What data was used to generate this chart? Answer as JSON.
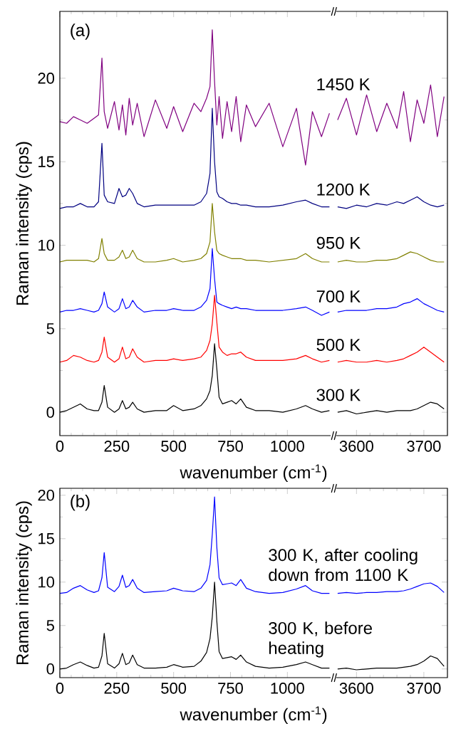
{
  "chart_data": [
    {
      "type": "line",
      "xlabel": "wavenumber (cm$^{-1}$)",
      "ylabel": "Raman intensity (cps)",
      "annotations": [
        "(a)"
      ],
      "x": [
        0,
        30,
        60,
        90,
        120,
        150,
        170,
        185,
        195,
        210,
        240,
        260,
        275,
        290,
        305,
        320,
        340,
        370,
        420,
        470,
        500,
        540,
        590,
        620,
        645,
        660,
        670,
        680,
        690,
        700,
        715,
        735,
        755,
        775,
        795,
        820,
        860,
        920,
        980,
        1040,
        1080,
        1110,
        1150,
        1185
      ],
      "xlim": [
        0,
        1190
      ],
      "xticks": [
        0,
        250,
        500,
        750,
        1000
      ],
      "ylim": [
        -1.4,
        24
      ],
      "yticks": [
        0,
        5,
        10,
        15,
        20
      ],
      "series": [
        {
          "name": "1450 K",
          "color": "#800080",
          "values": [
            17.4,
            17.3,
            17.7,
            17.5,
            17.3,
            17.6,
            17.8,
            21.2,
            18.0,
            17.0,
            18.6,
            16.9,
            18.4,
            16.6,
            18.8,
            17.2,
            18.5,
            16.5,
            18.7,
            17.0,
            18.3,
            16.8,
            18.5,
            18.0,
            18.8,
            19.5,
            22.9,
            19.8,
            17.2,
            18.9,
            16.4,
            18.6,
            16.8,
            18.9,
            16.2,
            18.4,
            17.1,
            18.5,
            15.9,
            18.2,
            14.8,
            18.0,
            16.5,
            17.9
          ]
        },
        {
          "name": "1200 K",
          "color": "#000080",
          "values": [
            12.2,
            12.3,
            12.3,
            12.5,
            12.3,
            12.3,
            12.6,
            16.1,
            13.0,
            12.6,
            12.5,
            13.4,
            12.9,
            13.0,
            13.4,
            13.1,
            12.5,
            12.3,
            12.4,
            12.4,
            12.4,
            12.4,
            12.4,
            12.6,
            13.1,
            14.3,
            18.2,
            15.0,
            13.2,
            12.9,
            12.8,
            12.6,
            12.5,
            12.5,
            12.4,
            12.4,
            12.3,
            12.3,
            12.4,
            12.6,
            12.7,
            12.5,
            12.3,
            12.3
          ]
        },
        {
          "name": "950 K",
          "color": "#808000",
          "values": [
            9.0,
            9.1,
            9.1,
            9.1,
            9.1,
            9.0,
            9.2,
            10.4,
            9.5,
            9.1,
            9.1,
            9.3,
            9.7,
            9.2,
            9.3,
            9.7,
            9.2,
            9.0,
            9.0,
            9.1,
            9.2,
            9.0,
            9.1,
            9.2,
            9.5,
            10.2,
            12.5,
            10.8,
            9.7,
            9.5,
            9.4,
            9.3,
            9.2,
            9.2,
            9.2,
            9.1,
            9.1,
            9.0,
            9.1,
            9.2,
            9.5,
            9.2,
            9.0,
            9.0
          ]
        },
        {
          "name": "700 K",
          "color": "#0000ff",
          "values": [
            6.0,
            6.1,
            6.1,
            6.2,
            6.1,
            6.0,
            6.1,
            6.5,
            7.2,
            6.3,
            6.0,
            6.2,
            6.8,
            6.2,
            6.3,
            6.7,
            6.3,
            6.0,
            6.1,
            6.1,
            6.2,
            6.1,
            6.1,
            6.3,
            6.7,
            7.4,
            9.8,
            8.0,
            6.6,
            6.5,
            6.4,
            6.3,
            6.2,
            6.3,
            6.2,
            6.2,
            6.1,
            6.1,
            6.1,
            6.2,
            6.3,
            6.1,
            5.8,
            6.0
          ]
        },
        {
          "name": "500 K",
          "color": "#ff0000",
          "values": [
            3.0,
            3.1,
            3.4,
            3.3,
            3.1,
            3.0,
            3.1,
            3.6,
            4.5,
            3.3,
            3.0,
            3.2,
            3.9,
            3.2,
            3.3,
            3.8,
            3.3,
            3.0,
            3.1,
            3.1,
            3.2,
            3.1,
            3.2,
            3.3,
            3.7,
            4.3,
            5.3,
            7.0,
            5.4,
            3.9,
            3.6,
            3.4,
            3.5,
            3.5,
            3.6,
            3.3,
            3.1,
            3.1,
            3.1,
            3.2,
            3.4,
            3.2,
            3.0,
            3.1
          ]
        },
        {
          "name": "300 K",
          "color": "#000000",
          "values": [
            0.0,
            0.1,
            0.3,
            0.5,
            0.2,
            0.1,
            0.1,
            0.6,
            1.6,
            0.3,
            0.0,
            0.2,
            0.7,
            0.2,
            0.3,
            0.6,
            0.2,
            0.0,
            0.1,
            0.1,
            0.4,
            0.1,
            0.2,
            0.4,
            0.8,
            1.3,
            2.2,
            4.1,
            2.6,
            0.9,
            0.5,
            0.6,
            0.7,
            0.5,
            0.8,
            0.3,
            0.1,
            0.1,
            0.0,
            0.2,
            0.4,
            0.2,
            0.0,
            0.1
          ]
        }
      ]
    },
    {
      "type": "line",
      "tick_labels": "x",
      "x": [
        3572,
        3585,
        3600,
        3615,
        3630,
        3645,
        3660,
        3670,
        3680,
        3690,
        3700,
        3710,
        3720,
        3730
      ],
      "xlim": [
        3570,
        3735
      ],
      "xticks": [
        3600,
        3700
      ],
      "ylim": [
        -1.4,
        24
      ],
      "yticks": [
        0,
        5,
        10,
        15,
        20
      ],
      "series": [
        {
          "color": "#800080",
          "values": [
            17.5,
            18.8,
            16.6,
            19.0,
            16.8,
            18.5,
            17.0,
            19.2,
            16.2,
            18.7,
            17.3,
            19.6,
            16.5,
            18.9
          ]
        },
        {
          "color": "#000080",
          "values": [
            12.3,
            12.2,
            12.4,
            12.3,
            12.5,
            12.4,
            12.6,
            12.5,
            12.7,
            12.9,
            12.6,
            12.4,
            12.3,
            12.4
          ]
        },
        {
          "color": "#808000",
          "values": [
            9.0,
            9.1,
            9.0,
            9.0,
            9.1,
            9.1,
            9.2,
            9.4,
            9.6,
            9.5,
            9.3,
            9.1,
            9.0,
            9.0
          ]
        },
        {
          "color": "#0000ff",
          "values": [
            6.0,
            6.1,
            6.1,
            6.1,
            6.2,
            6.2,
            6.3,
            6.5,
            6.6,
            6.8,
            6.5,
            6.3,
            6.1,
            6.0
          ]
        },
        {
          "color": "#ff0000",
          "values": [
            3.0,
            3.1,
            3.0,
            3.0,
            3.1,
            3.0,
            3.1,
            3.2,
            3.4,
            3.6,
            3.9,
            3.6,
            3.3,
            3.0
          ]
        },
        {
          "color": "#000000",
          "values": [
            0.0,
            0.1,
            -0.1,
            0.0,
            0.1,
            0.0,
            0.1,
            0.1,
            0.1,
            0.2,
            0.4,
            0.6,
            0.5,
            0.2
          ]
        }
      ]
    },
    {
      "type": "line",
      "xlabel": "wavenumber (cm$^{-1}$)",
      "ylabel": "Raman intensity (cps)",
      "annotations": [
        "(b)"
      ],
      "x": [
        0,
        30,
        60,
        90,
        120,
        150,
        170,
        185,
        195,
        210,
        240,
        260,
        275,
        290,
        305,
        320,
        340,
        370,
        420,
        470,
        500,
        540,
        590,
        620,
        645,
        660,
        670,
        680,
        690,
        700,
        715,
        735,
        755,
        775,
        795,
        820,
        860,
        920,
        980,
        1040,
        1080,
        1110,
        1150,
        1185
      ],
      "xlim": [
        0,
        1190
      ],
      "xticks": [
        0,
        250,
        500,
        750,
        1000
      ],
      "ylim": [
        -1,
        20.8
      ],
      "yticks": [
        0,
        5,
        10,
        15,
        20
      ],
      "series": [
        {
          "name": "300 K, after cooling down from 1100 K",
          "color": "#0000ff",
          "values": [
            8.7,
            8.8,
            9.3,
            9.6,
            9.1,
            8.8,
            9.0,
            10.5,
            13.4,
            9.4,
            8.9,
            9.5,
            10.8,
            9.4,
            9.6,
            10.3,
            9.3,
            8.8,
            8.9,
            9.0,
            9.3,
            9.0,
            8.9,
            9.3,
            10.2,
            12.0,
            15.5,
            19.8,
            14.0,
            10.5,
            9.7,
            9.8,
            9.9,
            9.6,
            10.3,
            9.3,
            8.9,
            8.7,
            8.8,
            9.2,
            9.6,
            9.0,
            8.7,
            8.7
          ]
        },
        {
          "name": "300 K, before heating",
          "color": "#000000",
          "values": [
            0.0,
            0.1,
            0.5,
            0.8,
            0.4,
            0.1,
            0.2,
            1.5,
            4.1,
            0.6,
            0.1,
            0.6,
            1.8,
            0.5,
            0.7,
            1.6,
            0.5,
            0.1,
            0.1,
            0.2,
            0.5,
            0.2,
            0.3,
            0.9,
            1.9,
            3.5,
            6.0,
            10.0,
            5.5,
            2.0,
            1.2,
            1.3,
            1.4,
            1.1,
            1.6,
            0.8,
            0.3,
            0.1,
            0.2,
            0.5,
            0.8,
            0.5,
            0.1,
            0.1
          ]
        }
      ]
    },
    {
      "type": "line",
      "tick_labels": "x",
      "x": [
        3572,
        3585,
        3600,
        3615,
        3630,
        3645,
        3660,
        3670,
        3680,
        3690,
        3700,
        3710,
        3720,
        3730
      ],
      "xlim": [
        3570,
        3735
      ],
      "xticks": [
        3600,
        3700
      ],
      "ylim": [
        -1,
        20.8
      ],
      "yticks": [
        0,
        5,
        10,
        15,
        20
      ],
      "series": [
        {
          "color": "#0000ff",
          "values": [
            8.7,
            8.8,
            8.7,
            8.8,
            8.8,
            8.9,
            8.9,
            9.0,
            9.2,
            9.5,
            9.8,
            9.9,
            9.5,
            8.8
          ]
        },
        {
          "color": "#000000",
          "values": [
            0.0,
            0.1,
            -0.1,
            0.0,
            0.1,
            0.1,
            0.1,
            0.2,
            0.3,
            0.5,
            0.9,
            1.5,
            1.2,
            0.3
          ]
        }
      ]
    }
  ]
}
